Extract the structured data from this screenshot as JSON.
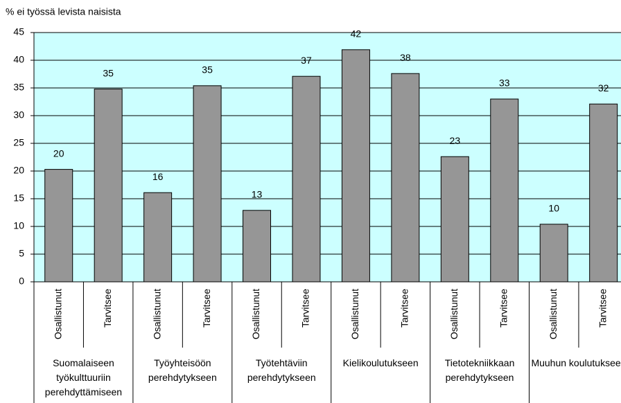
{
  "chart_data": {
    "type": "bar",
    "ylabel": "% ei työssä levista naisista",
    "categories": [
      "Osallistunut",
      "Tarvitsee",
      "Osallistunut",
      "Tarvitsee",
      "Osallistunut",
      "Tarvitsee",
      "Osallistunut",
      "Tarvitsee",
      "Osallistunut",
      "Tarvitsee",
      "Osallistunut",
      "Tarvitsee"
    ],
    "groups": [
      "Suomalaiseen työkulttuuriin perehdyttämiseen",
      "Työyhteisöön perehdytykseen",
      "Työtehtäviin perehdytykseen",
      "Kielikoulutukseen",
      "Tietotekniikkaan perehdytykseen",
      "Muuhun koulutukseen"
    ],
    "values": [
      20.3,
      34.8,
      16.1,
      35.4,
      12.9,
      37.1,
      41.9,
      37.6,
      22.6,
      33.0,
      10.4,
      32.1
    ],
    "value_labels": [
      "20",
      "35",
      "16",
      "35",
      "13",
      "37",
      "42",
      "38",
      "23",
      "33",
      "10",
      "32"
    ],
    "color": "#969696",
    "background": "#ccffff",
    "ylim": [
      0,
      45
    ],
    "yticks": [
      0,
      5,
      10,
      15,
      20,
      25,
      30,
      35,
      40,
      45
    ],
    "grid": true
  }
}
